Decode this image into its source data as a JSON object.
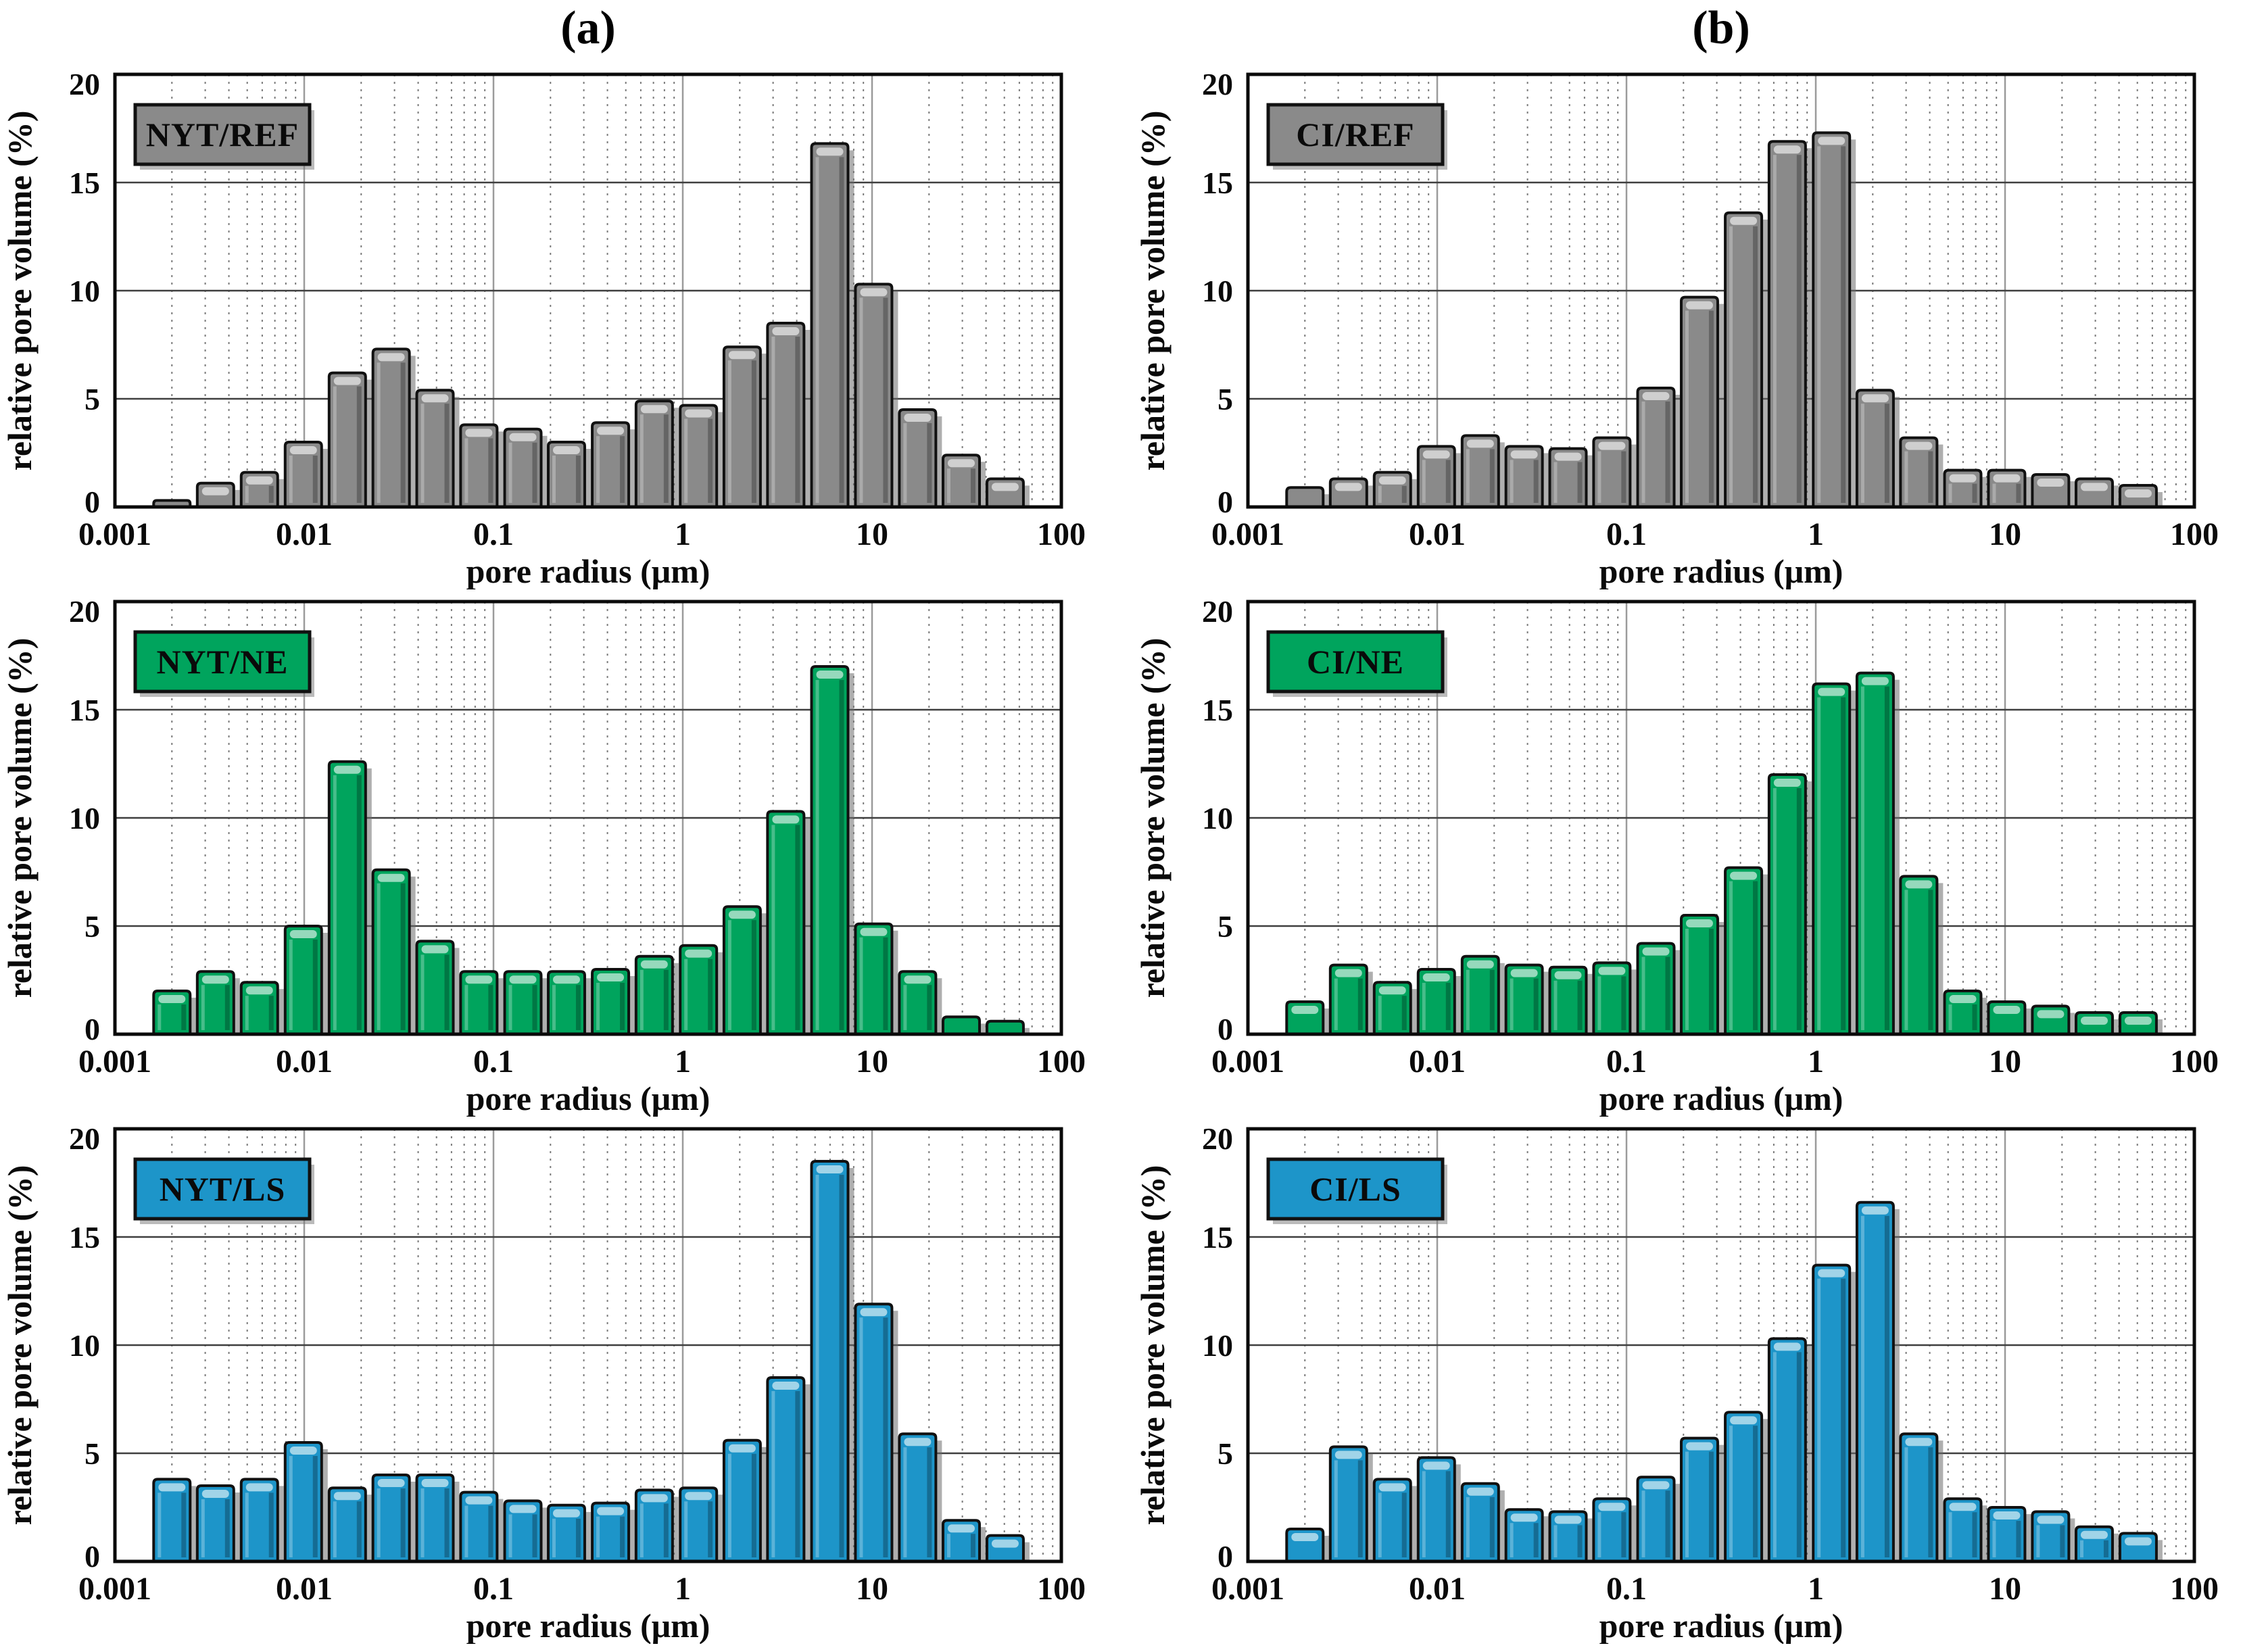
{
  "figure": {
    "panel_labels": [
      "(a)",
      "(b)"
    ]
  },
  "axes": {
    "xlabel": "pore radius (μm)",
    "ylabel": "relative pore volume (%)",
    "xscale": "log",
    "xlim": [
      0.001,
      100
    ],
    "ylim": [
      0,
      20
    ],
    "x_tick_values": [
      0.001,
      0.01,
      0.1,
      1,
      10,
      100
    ],
    "x_tick_labels": [
      "0.001",
      "0.01",
      "0.1",
      "1",
      "10",
      "100"
    ],
    "y_tick_values": [
      0,
      5,
      10,
      15,
      20
    ],
    "y_tick_labels": [
      "0",
      "5",
      "10",
      "15",
      "20"
    ],
    "h_gridlines": [
      5,
      10,
      15
    ],
    "v_decade_gridlines": [
      0.01,
      0.1,
      1,
      10
    ],
    "minor_gridline_style": "dotted",
    "border_color": "#0a0a0a"
  },
  "bin_centers_um": [
    0.002,
    0.0034,
    0.0058,
    0.0099,
    0.0169,
    0.0288,
    0.0491,
    0.0837,
    0.143,
    0.243,
    0.415,
    0.707,
    1.21,
    2.06,
    3.5,
    5.98,
    10.2,
    17.4,
    29.6,
    50.5
  ],
  "colors": {
    "ref_gray": "#8A8A8A",
    "ne_green": "#00A45D",
    "ls_blue": "#1D95C9",
    "bar_outline": "#111111",
    "legend_text": "#FFFFFF"
  },
  "chart_data": [
    {
      "type": "bar",
      "panel": "a",
      "legend": "NYT/REF",
      "color": "#8A8A8A",
      "xlabel": "pore radius (μm)",
      "ylabel": "relative pore volume (%)",
      "xlim": [
        0.001,
        100
      ],
      "ylim": [
        0,
        20
      ],
      "x": [
        0.002,
        0.0034,
        0.0058,
        0.0099,
        0.0169,
        0.0288,
        0.0491,
        0.0837,
        0.143,
        0.243,
        0.415,
        0.707,
        1.21,
        2.06,
        3.5,
        5.98,
        10.2,
        17.4,
        29.6,
        50.5
      ],
      "values": [
        0.3,
        1.1,
        1.6,
        3.0,
        6.2,
        7.3,
        5.4,
        3.8,
        3.6,
        3.0,
        3.9,
        4.9,
        4.7,
        7.4,
        8.5,
        16.8,
        10.3,
        4.5,
        2.4,
        1.3
      ]
    },
    {
      "type": "bar",
      "panel": "b",
      "legend": "CI/REF",
      "color": "#8A8A8A",
      "xlabel": "pore radius (μm)",
      "ylabel": "relative pore volume (%)",
      "xlim": [
        0.001,
        100
      ],
      "ylim": [
        0,
        20
      ],
      "x": [
        0.002,
        0.0034,
        0.0058,
        0.0099,
        0.0169,
        0.0288,
        0.0491,
        0.0837,
        0.143,
        0.243,
        0.415,
        0.707,
        1.21,
        2.06,
        3.5,
        5.98,
        10.2,
        17.4,
        29.6,
        50.5
      ],
      "values": [
        0.9,
        1.3,
        1.6,
        2.8,
        3.3,
        2.8,
        2.7,
        3.2,
        5.5,
        9.7,
        13.6,
        16.9,
        17.3,
        5.4,
        3.2,
        1.7,
        1.7,
        1.5,
        1.3,
        1.0
      ]
    },
    {
      "type": "bar",
      "panel": "a",
      "legend": "NYT/NE",
      "color": "#00A45D",
      "xlabel": "pore radius (μm)",
      "ylabel": "relative pore volume (%)",
      "xlim": [
        0.001,
        100
      ],
      "ylim": [
        0,
        20
      ],
      "x": [
        0.002,
        0.0034,
        0.0058,
        0.0099,
        0.0169,
        0.0288,
        0.0491,
        0.0837,
        0.143,
        0.243,
        0.415,
        0.707,
        1.21,
        2.06,
        3.5,
        5.98,
        10.2,
        17.4,
        29.6,
        50.5
      ],
      "values": [
        2.0,
        2.9,
        2.4,
        5.0,
        12.6,
        7.6,
        4.3,
        2.9,
        2.9,
        2.9,
        3.0,
        3.6,
        4.1,
        5.9,
        10.3,
        17.0,
        5.1,
        2.9,
        0.8,
        0.6
      ]
    },
    {
      "type": "bar",
      "panel": "b",
      "legend": "CI/NE",
      "color": "#00A45D",
      "xlabel": "pore radius (μm)",
      "ylabel": "relative pore volume (%)",
      "xlim": [
        0.001,
        100
      ],
      "ylim": [
        0,
        20
      ],
      "x": [
        0.002,
        0.0034,
        0.0058,
        0.0099,
        0.0169,
        0.0288,
        0.0491,
        0.0837,
        0.143,
        0.243,
        0.415,
        0.707,
        1.21,
        2.06,
        3.5,
        5.98,
        10.2,
        17.4,
        29.6,
        50.5
      ],
      "values": [
        1.5,
        3.2,
        2.4,
        3.0,
        3.6,
        3.2,
        3.1,
        3.3,
        4.2,
        5.5,
        7.7,
        12.0,
        16.2,
        16.7,
        7.3,
        2.0,
        1.5,
        1.3,
        1.0,
        1.0
      ]
    },
    {
      "type": "bar",
      "panel": "a",
      "legend": "NYT/LS",
      "color": "#1D95C9",
      "xlabel": "pore radius (μm)",
      "ylabel": "relative pore volume (%)",
      "xlim": [
        0.001,
        100
      ],
      "ylim": [
        0,
        20
      ],
      "x": [
        0.002,
        0.0034,
        0.0058,
        0.0099,
        0.0169,
        0.0288,
        0.0491,
        0.0837,
        0.143,
        0.243,
        0.415,
        0.707,
        1.21,
        2.06,
        3.5,
        5.98,
        10.2,
        17.4,
        29.6,
        50.5
      ],
      "values": [
        3.8,
        3.5,
        3.8,
        5.5,
        3.4,
        4.0,
        4.0,
        3.2,
        2.8,
        2.6,
        2.7,
        3.3,
        3.4,
        5.6,
        8.5,
        18.5,
        11.9,
        5.9,
        1.9,
        1.2
      ]
    },
    {
      "type": "bar",
      "panel": "b",
      "legend": "CI/LS",
      "color": "#1D95C9",
      "xlabel": "pore radius (μm)",
      "ylabel": "relative pore volume (%)",
      "xlim": [
        0.001,
        100
      ],
      "ylim": [
        0,
        20
      ],
      "x": [
        0.002,
        0.0034,
        0.0058,
        0.0099,
        0.0169,
        0.0288,
        0.0491,
        0.0837,
        0.143,
        0.243,
        0.415,
        0.707,
        1.21,
        2.06,
        3.5,
        5.98,
        10.2,
        17.4,
        29.6,
        50.5
      ],
      "values": [
        1.5,
        5.3,
        3.8,
        4.8,
        3.6,
        2.4,
        2.3,
        2.9,
        3.9,
        5.7,
        6.9,
        10.3,
        13.7,
        16.6,
        5.9,
        2.9,
        2.5,
        2.3,
        1.6,
        1.3
      ]
    }
  ]
}
